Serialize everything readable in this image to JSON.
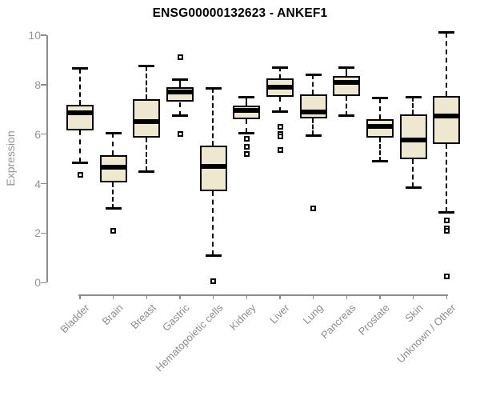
{
  "chart_data": {
    "type": "boxplot",
    "title": "ENSG00000132623 - ANKEF1",
    "xlabel": "",
    "ylabel": "Expression",
    "ylim": [
      0,
      10.3
    ],
    "yticks": [
      0,
      2,
      4,
      6,
      8,
      10
    ],
    "grid": false,
    "legend": "none",
    "categories": [
      "Bladder",
      "Brain",
      "Breast",
      "Gastric",
      "Hematopoietic cells",
      "Kidney",
      "Liver",
      "Lung",
      "Pancreas",
      "Prostate",
      "Skin",
      "Unknown / Other"
    ],
    "series": [
      {
        "category": "Bladder",
        "whisker_low": 4.85,
        "q1": 6.15,
        "median": 6.85,
        "q3": 7.2,
        "whisker_high": 8.65,
        "outliers": [
          4.35
        ]
      },
      {
        "category": "Brain",
        "whisker_low": 3.0,
        "q1": 4.05,
        "median": 4.65,
        "q3": 5.15,
        "whisker_high": 6.05,
        "outliers": [
          2.1
        ]
      },
      {
        "category": "Breast",
        "whisker_low": 4.5,
        "q1": 5.85,
        "median": 6.5,
        "q3": 7.4,
        "whisker_high": 8.75,
        "outliers": []
      },
      {
        "category": "Gastric",
        "whisker_low": 6.75,
        "q1": 7.3,
        "median": 7.7,
        "q3": 7.9,
        "whisker_high": 8.2,
        "outliers": [
          9.1,
          6.0
        ]
      },
      {
        "category": "Hematopoietic cells",
        "whisker_low": 1.1,
        "q1": 3.7,
        "median": 4.7,
        "q3": 5.55,
        "whisker_high": 7.85,
        "outliers": [
          0.05
        ]
      },
      {
        "category": "Kidney",
        "whisker_low": 6.05,
        "q1": 6.6,
        "median": 6.95,
        "q3": 7.15,
        "whisker_high": 7.5,
        "outliers": [
          5.8,
          5.5,
          5.2
        ]
      },
      {
        "category": "Liver",
        "whisker_low": 6.9,
        "q1": 7.5,
        "median": 7.9,
        "q3": 8.25,
        "whisker_high": 8.7,
        "outliers": [
          6.3,
          6.0,
          5.9,
          5.35
        ]
      },
      {
        "category": "Lung",
        "whisker_low": 5.95,
        "q1": 6.65,
        "median": 6.9,
        "q3": 7.6,
        "whisker_high": 8.4,
        "outliers": [
          3.0
        ]
      },
      {
        "category": "Pancreas",
        "whisker_low": 6.75,
        "q1": 7.55,
        "median": 8.1,
        "q3": 8.35,
        "whisker_high": 8.7,
        "outliers": []
      },
      {
        "category": "Prostate",
        "whisker_low": 4.9,
        "q1": 5.85,
        "median": 6.3,
        "q3": 6.6,
        "whisker_high": 7.45,
        "outliers": []
      },
      {
        "category": "Skin",
        "whisker_low": 3.85,
        "q1": 5.0,
        "median": 5.75,
        "q3": 6.8,
        "whisker_high": 7.5,
        "outliers": []
      },
      {
        "category": "Unknown / Other",
        "whisker_low": 2.85,
        "q1": 5.6,
        "median": 6.75,
        "q3": 7.55,
        "whisker_high": 10.1,
        "outliers": [
          2.5,
          2.2,
          2.1,
          0.25
        ]
      }
    ],
    "colors": {
      "box_fill": "#EDE8CF",
      "box_border": "#000000",
      "median": "#000000",
      "whisker": "#000000",
      "axis": "#8C8C8C",
      "tick_label": "#949494",
      "title": "#000000"
    }
  }
}
